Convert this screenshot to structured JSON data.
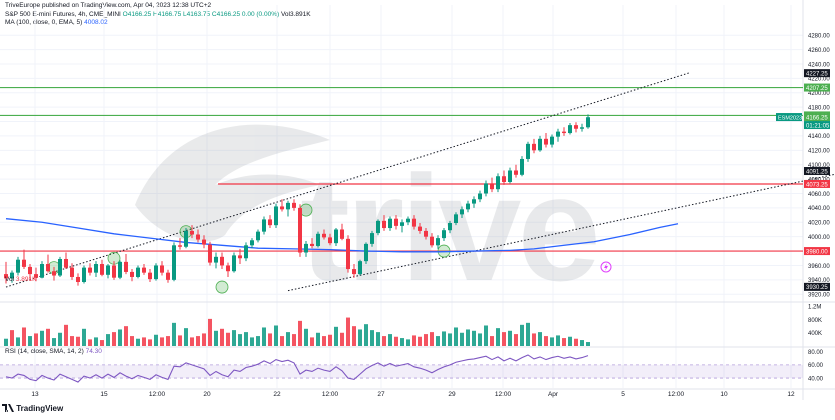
{
  "publisher_line": "TriveEurope published on TradingView.com, Apr 04, 2023 12:38 UTC+2",
  "legend": {
    "symbol": "S&P 500 E-mini Futures, 4h, CME_MINI",
    "ohlc": "O4166.25 H4166.75 L4163.75 C4166.25 0.00 (0.00%)",
    "volume_inline": "Vol3.891K",
    "ma_label": "MA (100, close, 0, EMA, 5)",
    "ma_value": "4008.02"
  },
  "volume_header": {
    "label": "Vol",
    "value": "3.891K"
  },
  "rsi_header": {
    "label": "RSI (14, close, SMA, 14, 2)",
    "value": "74.30"
  },
  "footer_brand": "TradingView",
  "watermark": "trive",
  "colors": {
    "up": "#089981",
    "down": "#f23645",
    "ma": "#2962ff",
    "rsi": "#7e57c2",
    "green_line": "#4caf50",
    "red_line": "#f23645",
    "grid": "#f0f3fa"
  },
  "chart_data": {
    "type": "candlestick",
    "x_tick_labels": [
      "13",
      "15",
      "12:00",
      "20",
      "22",
      "12:00",
      "27",
      "29",
      "12:00",
      "Apr",
      "5",
      "12:00",
      "10",
      "12"
    ],
    "price_axis": {
      "ylim": [
        3912,
        4290
      ],
      "tick_labels": [
        "4280.00",
        "4260.00",
        "4240.00",
        "4220.00",
        "4200.00",
        "4180.00",
        "4160.00",
        "4140.00",
        "4120.00",
        "4100.00",
        "4080.00",
        "4060.00",
        "4040.00",
        "4020.00",
        "4000.00",
        "3980.00",
        "3960.00",
        "3940.00",
        "3920.00"
      ],
      "tags": [
        {
          "value": 4227.25,
          "label": "4227.25",
          "kind": "dark"
        },
        {
          "value": 4207.25,
          "label": "4207.25",
          "kind": "green"
        },
        {
          "value": 4168.5,
          "label": "4168.50",
          "kind": "green"
        },
        {
          "value": 4166.25,
          "label": "4166.25",
          "kind": "green"
        },
        {
          "value": 4091.25,
          "label": "4091.25",
          "kind": "dark"
        },
        {
          "value": 4073.25,
          "label": "4073.25",
          "kind": "red"
        },
        {
          "value": 3980.0,
          "label": "3980.00",
          "kind": "red"
        },
        {
          "value": 3930.25,
          "label": "3930.25",
          "kind": "dark"
        }
      ],
      "symbol_tag": "ESM2023",
      "countdown": "01:21:05"
    },
    "horizontal_levels": [
      {
        "name": "resistance-4207",
        "value": 4207.25,
        "color": "green"
      },
      {
        "name": "resistance-4168",
        "value": 4168.5,
        "color": "green"
      },
      {
        "name": "level-4073",
        "value": 4073.25,
        "color": "red"
      },
      {
        "name": "support-3980",
        "value": 3980.0,
        "color": "red"
      }
    ],
    "trend_lines": [
      {
        "name": "upper-trend-line",
        "from": [
          0,
          3930
        ],
        "to": [
          114,
          4228
        ]
      },
      {
        "name": "lower-trend-line",
        "from": [
          47,
          3925
        ],
        "to": [
          140,
          4090
        ]
      }
    ],
    "candles": [
      [
        3948,
        3965,
        3935,
        3942
      ],
      [
        3942,
        3953,
        3936,
        3950
      ],
      [
        3950,
        3972,
        3946,
        3968
      ],
      [
        3968,
        3982,
        3955,
        3958
      ],
      [
        3958,
        3962,
        3940,
        3948
      ],
      [
        3948,
        3957,
        3938,
        3943
      ],
      [
        3943,
        3966,
        3942,
        3962
      ],
      [
        3962,
        3975,
        3950,
        3952
      ],
      [
        3952,
        3958,
        3939,
        3946
      ],
      [
        3946,
        3972,
        3944,
        3969
      ],
      [
        3969,
        3978,
        3955,
        3957
      ],
      [
        3957,
        3963,
        3940,
        3944
      ],
      [
        3944,
        3949,
        3932,
        3937
      ],
      [
        3937,
        3960,
        3935,
        3957
      ],
      [
        3957,
        3963,
        3946,
        3950
      ],
      [
        3950,
        3966,
        3944,
        3962
      ],
      [
        3962,
        3968,
        3945,
        3947
      ],
      [
        3947,
        3962,
        3942,
        3960
      ],
      [
        3960,
        3966,
        3940,
        3943
      ],
      [
        3943,
        3967,
        3941,
        3965
      ],
      [
        3965,
        3976,
        3948,
        3951
      ],
      [
        3951,
        3955,
        3938,
        3944
      ],
      [
        3944,
        3960,
        3942,
        3957
      ],
      [
        3957,
        3962,
        3947,
        3950
      ],
      [
        3950,
        3955,
        3937,
        3941
      ],
      [
        3941,
        3963,
        3939,
        3960
      ],
      [
        3960,
        3966,
        3946,
        3950
      ],
      [
        3950,
        3954,
        3936,
        3940
      ],
      [
        3940,
        3992,
        3938,
        3988
      ],
      [
        3988,
        3998,
        3982,
        3986
      ],
      [
        3986,
        4012,
        3984,
        4008
      ],
      [
        4008,
        4016,
        3998,
        4003
      ],
      [
        4003,
        4010,
        3992,
        3996
      ],
      [
        3996,
        4002,
        3984,
        3989
      ],
      [
        3989,
        3993,
        3960,
        3964
      ],
      [
        3964,
        3978,
        3956,
        3972
      ],
      [
        3972,
        3978,
        3955,
        3960
      ],
      [
        3960,
        3964,
        3944,
        3952
      ],
      [
        3952,
        3978,
        3950,
        3974
      ],
      [
        3974,
        3983,
        3962,
        3970
      ],
      [
        3970,
        3992,
        3966,
        3988
      ],
      [
        3988,
        3998,
        3984,
        3995
      ],
      [
        3995,
        4010,
        3992,
        4007
      ],
      [
        4007,
        4028,
        4003,
        4024
      ],
      [
        4024,
        4030,
        4012,
        4016
      ],
      [
        4016,
        4046,
        4012,
        4042
      ],
      [
        4042,
        4052,
        4035,
        4038
      ],
      [
        4038,
        4050,
        4028,
        4047
      ],
      [
        4047,
        4052,
        4036,
        4040
      ],
      [
        4040,
        4045,
        3972,
        3978
      ],
      [
        3978,
        3994,
        3972,
        3990
      ],
      [
        3990,
        3998,
        3984,
        3987
      ],
      [
        3987,
        4007,
        3985,
        4004
      ],
      [
        4004,
        4010,
        3996,
        3999
      ],
      [
        3999,
        4004,
        3988,
        3991
      ],
      [
        3991,
        4012,
        3987,
        4010
      ],
      [
        4010,
        4018,
        3995,
        3997
      ],
      [
        3997,
        4002,
        3950,
        3955
      ],
      [
        3955,
        3962,
        3943,
        3948
      ],
      [
        3948,
        3968,
        3946,
        3966
      ],
      [
        3966,
        3992,
        3962,
        3990
      ],
      [
        3990,
        4008,
        3986,
        4005
      ],
      [
        4005,
        4024,
        4002,
        4022
      ],
      [
        4022,
        4030,
        4008,
        4012
      ],
      [
        4012,
        4028,
        4008,
        4025
      ],
      [
        4025,
        4030,
        4010,
        4015
      ],
      [
        4015,
        4024,
        4006,
        4020
      ],
      [
        4020,
        4028,
        4016,
        4025
      ],
      [
        4025,
        4030,
        4010,
        4014
      ],
      [
        4014,
        4019,
        4004,
        4008
      ],
      [
        4008,
        4012,
        3996,
        4000
      ],
      [
        4000,
        4005,
        3985,
        3988
      ],
      [
        3988,
        4002,
        3983,
        3998
      ],
      [
        3998,
        4012,
        3994,
        4009
      ],
      [
        4009,
        4022,
        4005,
        4019
      ],
      [
        4019,
        4034,
        4016,
        4031
      ],
      [
        4031,
        4042,
        4026,
        4038
      ],
      [
        4038,
        4050,
        4034,
        4046
      ],
      [
        4046,
        4056,
        4040,
        4052
      ],
      [
        4052,
        4064,
        4048,
        4060
      ],
      [
        4060,
        4078,
        4056,
        4074
      ],
      [
        4074,
        4082,
        4062,
        4066
      ],
      [
        4066,
        4088,
        4062,
        4084
      ],
      [
        4084,
        4092,
        4072,
        4076
      ],
      [
        4076,
        4096,
        4074,
        4092
      ],
      [
        4092,
        4100,
        4082,
        4086
      ],
      [
        4086,
        4112,
        4084,
        4108
      ],
      [
        4108,
        4132,
        4104,
        4129
      ],
      [
        4129,
        4136,
        4116,
        4120
      ],
      [
        4120,
        4140,
        4118,
        4136
      ],
      [
        4136,
        4144,
        4124,
        4128
      ],
      [
        4128,
        4142,
        4124,
        4139
      ],
      [
        4139,
        4150,
        4132,
        4146
      ],
      [
        4146,
        4152,
        4140,
        4144
      ],
      [
        4144,
        4158,
        4142,
        4155
      ],
      [
        4155,
        4159,
        4145,
        4150
      ],
      [
        4150,
        4157,
        4146,
        4152
      ],
      [
        4152,
        4170,
        4150,
        4166
      ]
    ],
    "ma_points": [
      [
        0,
        4025
      ],
      [
        6,
        4020
      ],
      [
        12,
        4012
      ],
      [
        18,
        4004
      ],
      [
        24,
        3998
      ],
      [
        30,
        3992
      ],
      [
        36,
        3988
      ],
      [
        42,
        3984
      ],
      [
        48,
        3983
      ],
      [
        54,
        3982
      ],
      [
        60,
        3980
      ],
      [
        66,
        3979
      ],
      [
        72,
        3979
      ],
      [
        78,
        3980
      ],
      [
        84,
        3981
      ],
      [
        88,
        3983
      ],
      [
        92,
        3987
      ],
      [
        98,
        3993
      ],
      [
        104,
        4003
      ],
      [
        109,
        4013
      ],
      [
        112,
        4018
      ]
    ],
    "volume_axis": {
      "ylim": [
        0,
        1300000
      ],
      "tick_labels": [
        "1.2M",
        "800K",
        "400K"
      ]
    },
    "volume": [
      [
        220,
        1
      ],
      [
        480,
        0
      ],
      [
        260,
        1
      ],
      [
        560,
        0
      ],
      [
        300,
        1
      ],
      [
        380,
        0
      ],
      [
        460,
        1
      ],
      [
        520,
        0
      ],
      [
        240,
        1
      ],
      [
        400,
        1
      ],
      [
        640,
        0
      ],
      [
        300,
        0
      ],
      [
        280,
        0
      ],
      [
        520,
        1
      ],
      [
        200,
        0
      ],
      [
        260,
        1
      ],
      [
        180,
        0
      ],
      [
        360,
        1
      ],
      [
        420,
        0
      ],
      [
        500,
        1
      ],
      [
        600,
        0
      ],
      [
        300,
        0
      ],
      [
        220,
        1
      ],
      [
        260,
        0
      ],
      [
        200,
        0
      ],
      [
        340,
        1
      ],
      [
        260,
        0
      ],
      [
        300,
        0
      ],
      [
        700,
        1
      ],
      [
        320,
        0
      ],
      [
        540,
        1
      ],
      [
        260,
        0
      ],
      [
        300,
        0
      ],
      [
        380,
        0
      ],
      [
        820,
        0
      ],
      [
        460,
        1
      ],
      [
        520,
        0
      ],
      [
        400,
        0
      ],
      [
        480,
        1
      ],
      [
        360,
        1
      ],
      [
        420,
        1
      ],
      [
        260,
        1
      ],
      [
        300,
        1
      ],
      [
        560,
        1
      ],
      [
        380,
        0
      ],
      [
        620,
        1
      ],
      [
        300,
        0
      ],
      [
        420,
        1
      ],
      [
        360,
        0
      ],
      [
        760,
        0
      ],
      [
        520,
        1
      ],
      [
        260,
        0
      ],
      [
        400,
        1
      ],
      [
        300,
        0
      ],
      [
        340,
        0
      ],
      [
        580,
        1
      ],
      [
        400,
        0
      ],
      [
        860,
        0
      ],
      [
        600,
        0
      ],
      [
        500,
        1
      ],
      [
        660,
        1
      ],
      [
        480,
        1
      ],
      [
        420,
        1
      ],
      [
        300,
        0
      ],
      [
        360,
        1
      ],
      [
        280,
        0
      ],
      [
        240,
        1
      ],
      [
        200,
        1
      ],
      [
        320,
        0
      ],
      [
        280,
        0
      ],
      [
        360,
        0
      ],
      [
        420,
        0
      ],
      [
        300,
        1
      ],
      [
        440,
        1
      ],
      [
        380,
        1
      ],
      [
        560,
        1
      ],
      [
        400,
        1
      ],
      [
        500,
        1
      ],
      [
        460,
        1
      ],
      [
        380,
        1
      ],
      [
        620,
        1
      ],
      [
        300,
        0
      ],
      [
        540,
        1
      ],
      [
        420,
        0
      ],
      [
        460,
        1
      ],
      [
        360,
        0
      ],
      [
        640,
        1
      ],
      [
        700,
        1
      ],
      [
        380,
        0
      ],
      [
        420,
        1
      ],
      [
        300,
        0
      ],
      [
        260,
        1
      ],
      [
        320,
        1
      ],
      [
        240,
        0
      ],
      [
        280,
        1
      ],
      [
        220,
        0
      ],
      [
        180,
        1
      ],
      [
        120,
        1
      ]
    ],
    "rsi_axis": {
      "ylim": [
        28,
        84
      ],
      "tick_labels": [
        "80.00",
        "60.00",
        "40.00"
      ],
      "band": [
        40,
        60
      ]
    },
    "rsi": [
      42,
      40,
      46,
      44,
      38,
      36,
      44,
      40,
      37,
      46,
      42,
      38,
      34,
      43,
      40,
      45,
      40,
      46,
      41,
      48,
      43,
      39,
      44,
      41,
      38,
      45,
      41,
      38,
      58,
      57,
      63,
      60,
      57,
      54,
      44,
      50,
      45,
      42,
      52,
      50,
      56,
      58,
      61,
      66,
      62,
      68,
      65,
      67,
      63,
      46,
      52,
      50,
      55,
      52,
      50,
      57,
      51,
      40,
      38,
      46,
      54,
      59,
      63,
      58,
      62,
      58,
      60,
      62,
      57,
      55,
      52,
      48,
      53,
      57,
      60,
      64,
      66,
      68,
      69,
      71,
      73,
      68,
      72,
      66,
      70,
      66,
      71,
      75,
      69,
      72,
      68,
      71,
      73,
      70,
      72,
      69,
      71,
      74
    ]
  }
}
